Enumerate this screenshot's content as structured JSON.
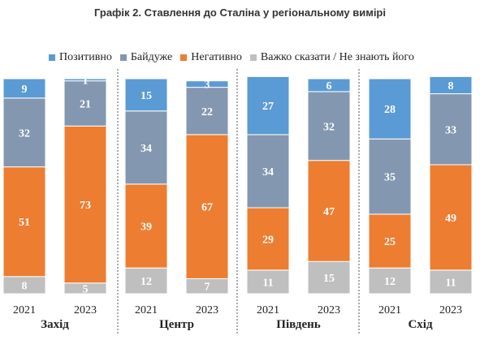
{
  "chart_data": {
    "type": "bar",
    "stacked": true,
    "title": "Графік 2. Ставлення до Сталіна у регіональному вимірі",
    "regions": [
      "Захід",
      "Центр",
      "Південь",
      "Схід"
    ],
    "years": [
      "2021",
      "2023"
    ],
    "categories": [
      "2021",
      "2023",
      "2021",
      "2023",
      "2021",
      "2023",
      "2021",
      "2023"
    ],
    "series": [
      {
        "name": "Важко сказати / Не знають його",
        "color": "#bfbfbf",
        "label_color": "#ffffff",
        "values": [
          8,
          5,
          12,
          7,
          11,
          15,
          12,
          11
        ]
      },
      {
        "name": "Негативно",
        "color": "#ed7d31",
        "label_color": "#ffffff",
        "values": [
          51,
          73,
          39,
          67,
          29,
          47,
          25,
          49
        ]
      },
      {
        "name": "Байдуже",
        "color": "#8497b0",
        "label_color": "#ffffff",
        "values": [
          32,
          21,
          34,
          22,
          34,
          32,
          35,
          33
        ]
      },
      {
        "name": "Позитивно",
        "color": "#5b9bd5",
        "label_color": "#ffffff",
        "values": [
          9,
          1,
          15,
          3,
          27,
          6,
          28,
          8
        ]
      }
    ],
    "legend_order": [
      "Позитивно",
      "Байдуже",
      "Негативно",
      "Важко сказати / Не знають його"
    ],
    "ylim": [
      0,
      100
    ],
    "legend_position": "top",
    "grid": false
  }
}
